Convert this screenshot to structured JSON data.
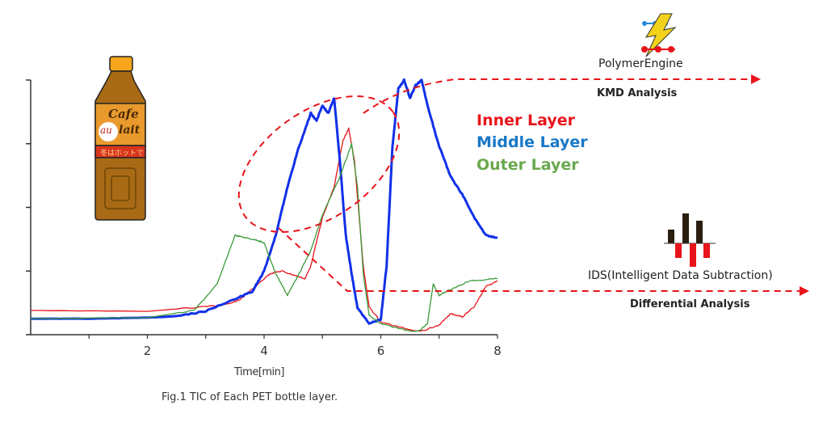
{
  "chart_data": {
    "type": "line",
    "title": "Fig.1 TIC of Each PET bottle layer.",
    "xlabel": "Time[min]",
    "ylabel": "",
    "xlim": [
      0,
      8
    ],
    "ylim": [
      0,
      100
    ],
    "xticks": [
      2,
      4,
      6,
      8
    ],
    "grid": false,
    "legend_position": "right",
    "series": [
      {
        "name": "Inner Layer",
        "color": "#e8141b",
        "width": 1.3,
        "x": [
          0,
          2,
          3,
          3.4,
          3.6,
          3.9,
          4.1,
          4.3,
          4.5,
          4.7,
          4.8,
          5.0,
          5.2,
          5.35,
          5.45,
          5.55,
          5.7,
          5.8,
          6.0,
          6.4,
          6.7,
          7.0,
          7.2,
          7.4,
          7.6,
          7.8,
          8.0
        ],
        "y": [
          9.5,
          9.2,
          11,
          12,
          14,
          20,
          24,
          25,
          23.5,
          22,
          27,
          46,
          58,
          76,
          81,
          68,
          27,
          11,
          5,
          2.5,
          1.3,
          3.8,
          8.3,
          7,
          11,
          19,
          21
        ]
      },
      {
        "name": "Middle Layer",
        "color": "#1030e8",
        "width": 3,
        "x": [
          0,
          1,
          2,
          2.5,
          3,
          3.5,
          3.8,
          4.0,
          4.2,
          4.4,
          4.6,
          4.8,
          4.9,
          5.0,
          5.1,
          5.2,
          5.3,
          5.4,
          5.5,
          5.6,
          5.8,
          6.0,
          6.1,
          6.2,
          6.3,
          6.4,
          6.5,
          6.6,
          6.7,
          6.8,
          7.0,
          7.2,
          7.4,
          7.6,
          7.8,
          8.0
        ],
        "y": [
          6.3,
          6.3,
          6.7,
          7.3,
          9.2,
          14,
          17,
          25,
          39,
          58,
          74,
          87,
          84,
          90,
          87,
          93,
          68,
          39,
          24,
          10.5,
          4.4,
          6,
          27,
          74,
          96.5,
          100,
          93,
          98,
          100,
          90,
          74,
          62,
          55,
          46,
          39,
          38
        ]
      },
      {
        "name": "Outer Layer",
        "color": "#3a9a3a",
        "width": 1.3,
        "x": [
          0,
          2,
          2.8,
          3.2,
          3.5,
          3.7,
          3.9,
          4.0,
          4.2,
          4.4,
          4.6,
          4.8,
          5.0,
          5.3,
          5.5,
          5.6,
          5.7,
          5.8,
          6.0,
          6.4,
          6.65,
          6.8,
          6.9,
          7.0,
          7.2,
          7.5,
          8.0
        ],
        "y": [
          6.3,
          6.7,
          9.5,
          20,
          39,
          38,
          37,
          36,
          24,
          15.5,
          24,
          33,
          47,
          62,
          75,
          58,
          24,
          7.6,
          4.4,
          1.9,
          1.3,
          4.4,
          20,
          15.5,
          17.8,
          21,
          22
        ]
      }
    ]
  },
  "legend": [
    "Inner Layer",
    "Middle Layer",
    "Outer Layer"
  ],
  "bottle": {
    "label_line1": "Cafe",
    "label_line2a": "au",
    "label_line2b": "lait",
    "band_text": "冬はホットで"
  },
  "polymer_engine": {
    "name": "PolymerEngine",
    "analysis": "KMD Analysis"
  },
  "ids": {
    "name": "IDS(Intelligent Data Subtraction)",
    "analysis": "Differential Analysis"
  },
  "colors": {
    "annotation": "#e8141b",
    "axis": "#333333"
  }
}
